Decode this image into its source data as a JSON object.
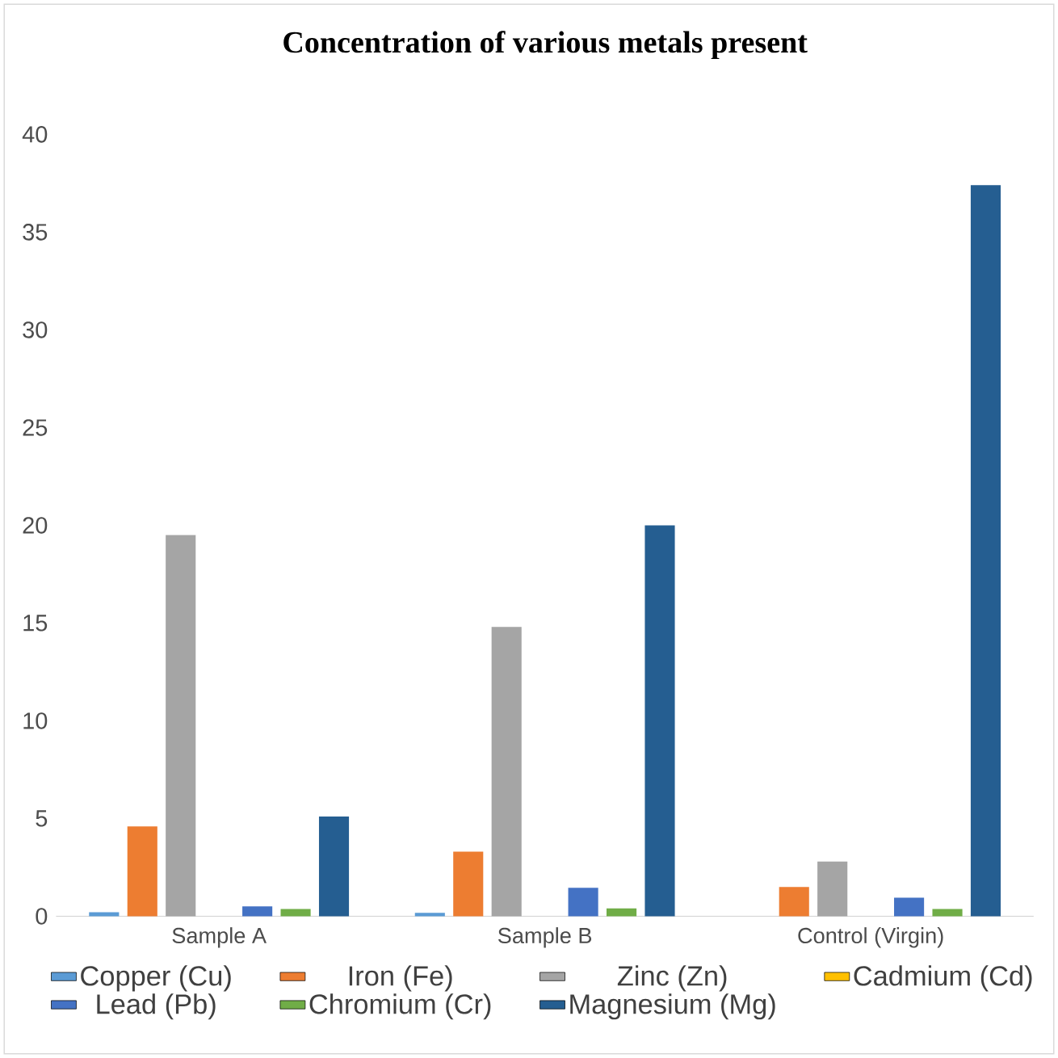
{
  "chart_data": {
    "type": "bar",
    "title": "Concentration of various metals present",
    "categories": [
      "Sample A",
      "Sample B",
      "Control (Virgin)"
    ],
    "series": [
      {
        "name": "Copper (Cu)",
        "color": "#5b9bd5",
        "values": [
          0.2,
          0.17,
          0
        ]
      },
      {
        "name": "Iron (Fe)",
        "color": "#ed7d31",
        "values": [
          4.6,
          3.3,
          1.5
        ]
      },
      {
        "name": "Zinc (Zn)",
        "color": "#a5a5a5",
        "values": [
          19.5,
          14.8,
          2.8
        ]
      },
      {
        "name": "Cadmium (Cd)",
        "color": "#ffc000",
        "values": [
          0,
          0,
          0
        ]
      },
      {
        "name": "Lead (Pb)",
        "color": "#4472c4",
        "values": [
          0.5,
          1.45,
          0.95
        ]
      },
      {
        "name": "Chromium (Cr)",
        "color": "#70ad47",
        "values": [
          0.37,
          0.4,
          0.37
        ]
      },
      {
        "name": "Magnesium (Mg)",
        "color": "#255e91",
        "values": [
          5.1,
          20.0,
          37.4
        ]
      }
    ],
    "ylim": [
      0,
      40
    ],
    "yticks": [
      0,
      5,
      10,
      15,
      20,
      25,
      30,
      35,
      40
    ],
    "legend": "bottom"
  }
}
